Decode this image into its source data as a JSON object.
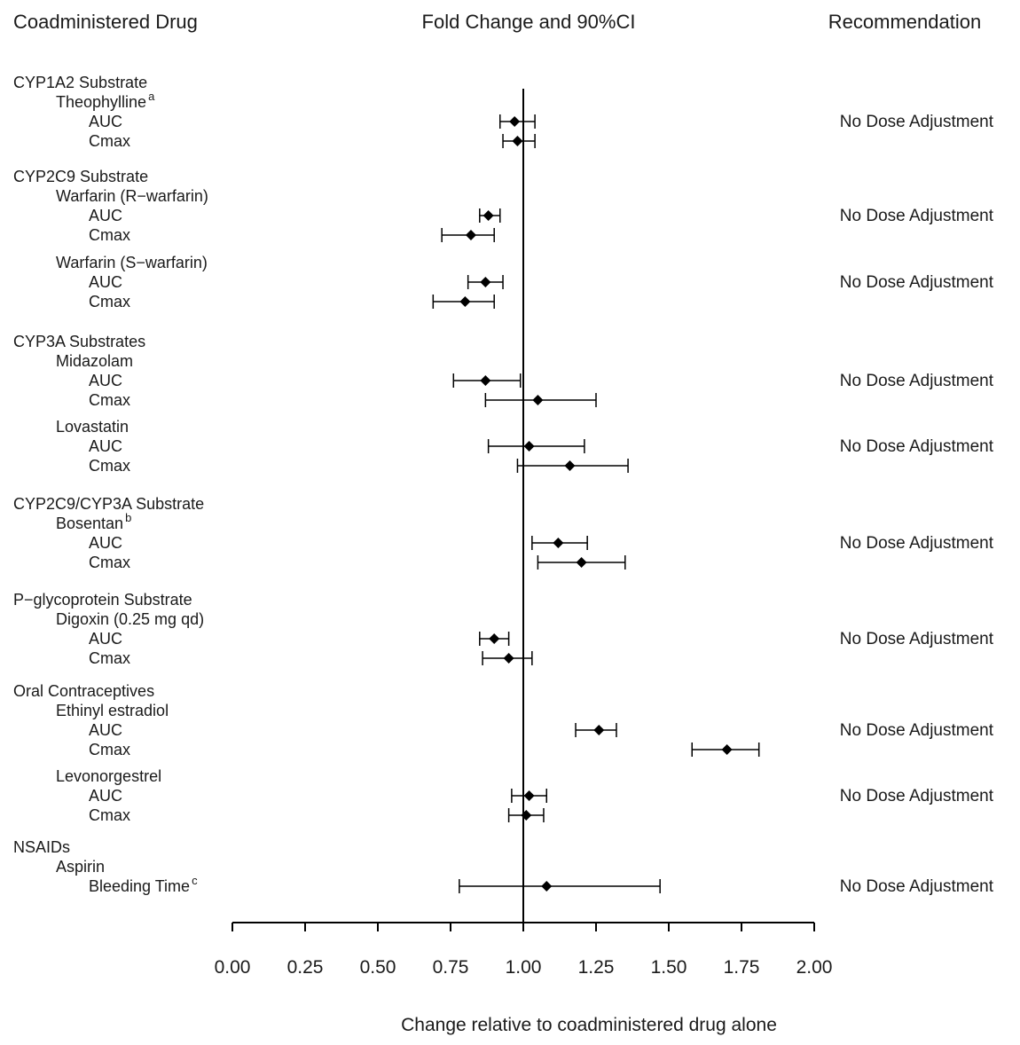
{
  "header": {
    "left": "Coadministered Drug",
    "center": "Fold Change and 90%CI",
    "right": "Recommendation"
  },
  "colors": {
    "line": "#000000",
    "text": "#1a1a1a",
    "background": "#ffffff"
  },
  "chart_data": {
    "type": "scatter",
    "variant": "forest-plot",
    "title": "Fold Change and 90%CI",
    "xlabel": "Change relative to coadministered drug alone",
    "ci_level": "90%",
    "xlim": [
      0,
      2
    ],
    "reference_line": 1.0,
    "xticks": [
      {
        "v": 0.0,
        "label": "0.00"
      },
      {
        "v": 0.25,
        "label": "0.25"
      },
      {
        "v": 0.5,
        "label": "0.50"
      },
      {
        "v": 0.75,
        "label": "0.75"
      },
      {
        "v": 1.0,
        "label": "1.00"
      },
      {
        "v": 1.25,
        "label": "1.25"
      },
      {
        "v": 1.5,
        "label": "1.50"
      },
      {
        "v": 1.75,
        "label": "1.75"
      },
      {
        "v": 2.0,
        "label": "2.00"
      }
    ],
    "rows": [
      {
        "label": "CYP1A2 Substrate",
        "level": 0,
        "gap": 0
      },
      {
        "label": "Theophylline",
        "sup": "a",
        "level": 1,
        "gap": 0
      },
      {
        "label": "AUC",
        "level": 2,
        "gap": 0,
        "point": {
          "est": 0.97,
          "lo": 0.92,
          "hi": 1.04
        },
        "rec": "No Dose Adjustment"
      },
      {
        "label": "Cmax",
        "level": 2,
        "gap": 0,
        "point": {
          "est": 0.98,
          "lo": 0.93,
          "hi": 1.04
        }
      },
      {
        "label": "CYP2C9 Substrate",
        "level": 0,
        "gap": 18
      },
      {
        "label": "Warfarin (R−warfarin)",
        "level": 1,
        "gap": 0
      },
      {
        "label": "AUC",
        "level": 2,
        "gap": 0,
        "point": {
          "est": 0.88,
          "lo": 0.85,
          "hi": 0.92
        },
        "rec": "No Dose Adjustment"
      },
      {
        "label": "Cmax",
        "level": 2,
        "gap": 0,
        "point": {
          "est": 0.82,
          "lo": 0.72,
          "hi": 0.9
        }
      },
      {
        "label": "Warfarin (S−warfarin)",
        "level": 1,
        "gap": 9
      },
      {
        "label": "AUC",
        "level": 2,
        "gap": 0,
        "point": {
          "est": 0.87,
          "lo": 0.81,
          "hi": 0.93
        },
        "rec": "No Dose Adjustment"
      },
      {
        "label": "Cmax",
        "level": 2,
        "gap": 0,
        "point": {
          "est": 0.8,
          "lo": 0.69,
          "hi": 0.9
        }
      },
      {
        "label": "CYP3A Substrates",
        "level": 0,
        "gap": 23
      },
      {
        "label": "Midazolam",
        "level": 1,
        "gap": 0
      },
      {
        "label": "AUC",
        "level": 2,
        "gap": 0,
        "point": {
          "est": 0.87,
          "lo": 0.76,
          "hi": 0.99
        },
        "rec": "No Dose Adjustment"
      },
      {
        "label": "Cmax",
        "level": 2,
        "gap": 0,
        "point": {
          "est": 1.05,
          "lo": 0.87,
          "hi": 1.25
        }
      },
      {
        "label": "Lovastatin",
        "level": 1,
        "gap": 8
      },
      {
        "label": "AUC",
        "level": 2,
        "gap": 0,
        "point": {
          "est": 1.02,
          "lo": 0.88,
          "hi": 1.21
        },
        "rec": "No Dose Adjustment"
      },
      {
        "label": "Cmax",
        "level": 2,
        "gap": 0,
        "point": {
          "est": 1.16,
          "lo": 0.98,
          "hi": 1.36
        }
      },
      {
        "label": "CYP2C9/CYP3A Substrate",
        "level": 0,
        "gap": 21
      },
      {
        "label": "Bosentan",
        "sup": "b",
        "level": 1,
        "gap": 0
      },
      {
        "label": "AUC",
        "level": 2,
        "gap": 0,
        "point": {
          "est": 1.12,
          "lo": 1.03,
          "hi": 1.22
        },
        "rec": "No Dose Adjustment"
      },
      {
        "label": "Cmax",
        "level": 2,
        "gap": 0,
        "point": {
          "est": 1.2,
          "lo": 1.05,
          "hi": 1.35
        }
      },
      {
        "label": "P−glycoprotein Substrate",
        "level": 0,
        "gap": 20
      },
      {
        "label": "Digoxin (0.25 mg qd)",
        "level": 1,
        "gap": 0
      },
      {
        "label": "AUC",
        "level": 2,
        "gap": 0,
        "point": {
          "est": 0.9,
          "lo": 0.85,
          "hi": 0.95
        },
        "rec": "No Dose Adjustment"
      },
      {
        "label": "Cmax",
        "level": 2,
        "gap": 0,
        "point": {
          "est": 0.95,
          "lo": 0.86,
          "hi": 1.03
        }
      },
      {
        "label": "Oral Contraceptives",
        "level": 0,
        "gap": 15
      },
      {
        "label": "Ethinyl estradiol",
        "level": 1,
        "gap": 0
      },
      {
        "label": "AUC",
        "level": 2,
        "gap": 0,
        "point": {
          "est": 1.26,
          "lo": 1.18,
          "hi": 1.32
        },
        "rec": "No Dose Adjustment"
      },
      {
        "label": "Cmax",
        "level": 2,
        "gap": 0,
        "point": {
          "est": 1.7,
          "lo": 1.58,
          "hi": 1.81
        }
      },
      {
        "label": "Levonorgestrel",
        "level": 1,
        "gap": 8
      },
      {
        "label": "AUC",
        "level": 2,
        "gap": 0,
        "point": {
          "est": 1.02,
          "lo": 0.96,
          "hi": 1.08
        },
        "rec": "No Dose Adjustment"
      },
      {
        "label": "Cmax",
        "level": 2,
        "gap": 0,
        "point": {
          "est": 1.01,
          "lo": 0.95,
          "hi": 1.07
        }
      },
      {
        "label": "NSAIDs",
        "level": 0,
        "gap": 14
      },
      {
        "label": "Aspirin",
        "level": 1,
        "gap": 0
      },
      {
        "label": "Bleeding Time",
        "sup": "c",
        "level": 2,
        "gap": 0,
        "point": {
          "est": 1.08,
          "lo": 0.78,
          "hi": 1.47
        },
        "rec": "No Dose Adjustment"
      }
    ]
  }
}
